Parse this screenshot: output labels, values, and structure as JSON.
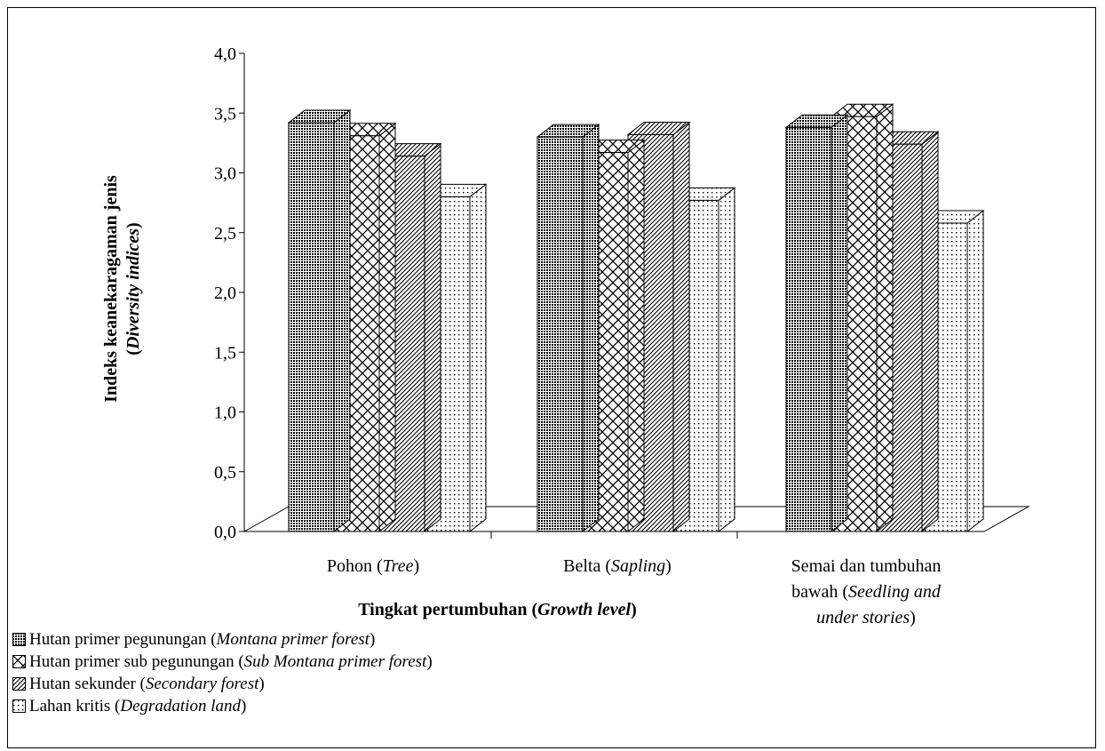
{
  "chart_data": {
    "type": "bar",
    "style": "3d-clustered",
    "xlabel": {
      "main": "Tingkat pertumbuhan (",
      "italic": "Growth level",
      "suffix": ")"
    },
    "ylabel": {
      "line1": "Indeks keanekaragaman jenis",
      "line2_open": "(",
      "line2_italic": "Diversity indices",
      "line2_close": ")"
    },
    "ylim": [
      0,
      4.0
    ],
    "yticks": [
      "0,0",
      "0,5",
      "1,0",
      "1,5",
      "2,0",
      "2,5",
      "3,0",
      "3,5",
      "4,0"
    ],
    "categories": [
      {
        "main": "Pohon (",
        "italic": "Tree",
        "suffix": ")"
      },
      {
        "main": "Belta (",
        "italic": "Sapling",
        "suffix": ")"
      },
      {
        "line1": "Semai dan tumbuhan",
        "main": "bawah (",
        "italic": "Seedling and",
        "line3_italic": "under stories",
        "suffix": ")"
      }
    ],
    "series": [
      {
        "name": "Hutan primer pegunungan (",
        "italic": "Montana primer forest",
        "suffix": ")",
        "pattern": "dense-dots",
        "values": [
          3.42,
          3.3,
          3.38
        ]
      },
      {
        "name": "Hutan primer sub pegunungan (",
        "italic": "Sub Montana primer forest",
        "suffix": ")",
        "pattern": "crosshatch",
        "values": [
          3.31,
          3.17,
          3.47
        ]
      },
      {
        "name": "Hutan sekunder (",
        "italic": "Secondary forest",
        "suffix": ")",
        "pattern": "diagonal-lines",
        "values": [
          3.14,
          3.32,
          3.24
        ]
      },
      {
        "name": "Lahan kritis (",
        "italic": "Degradation land",
        "suffix": ")",
        "pattern": "sparse-dots",
        "values": [
          2.8,
          2.77,
          2.58
        ]
      }
    ],
    "grid": false,
    "legend_position": "bottom-left"
  }
}
